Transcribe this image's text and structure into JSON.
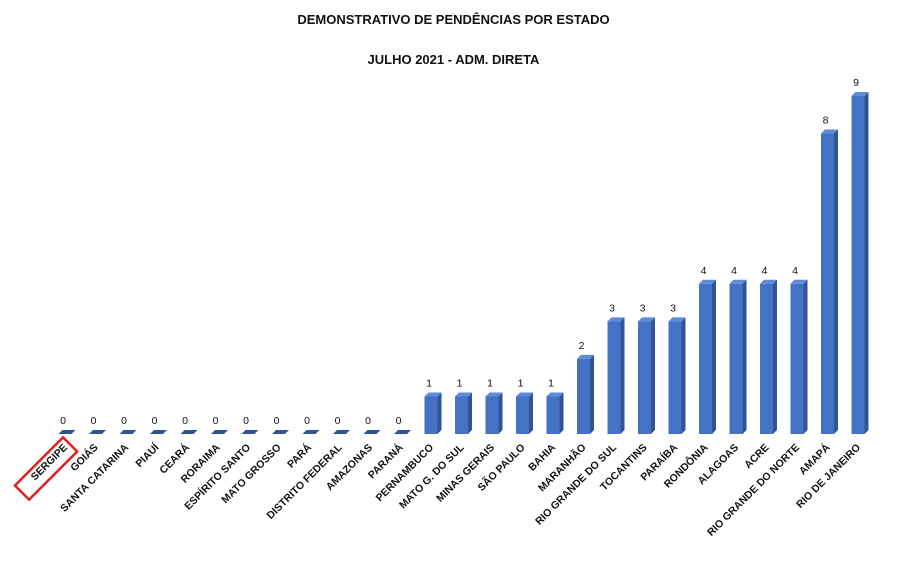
{
  "chart_data": {
    "type": "bar",
    "title": "DEMONSTRATIVO DE PENDÊNCIAS POR ESTADO",
    "subtitle": "JULHO 2021 - ADM. DIRETA",
    "categories": [
      "SERGIPE",
      "GOIÁS",
      "SANTA CATARINA",
      "PIAUÍ",
      "CEARÁ",
      "RORAIMA",
      "ESPÍRITO SANTO",
      "MATO GROSSO",
      "PARÁ",
      "DISTRITO FEDERAL",
      "AMAZONAS",
      "PARANÁ",
      "PERNAMBUCO",
      "MATO G. DO SUL",
      "MINAS GERAIS",
      "SÃO PAULO",
      "BAHIA",
      "MARANHÃO",
      "RIO GRANDE DO SUL",
      "TOCANTINS",
      "PARAÍBA",
      "RONDÔNIA",
      "ALAGOAS",
      "ACRE",
      "RIO GRANDE DO NORTE",
      "AMAPÁ",
      "RIO DE JANEIRO"
    ],
    "values": [
      0,
      0,
      0,
      0,
      0,
      0,
      0,
      0,
      0,
      0,
      0,
      0,
      1,
      1,
      1,
      1,
      1,
      2,
      3,
      3,
      3,
      4,
      4,
      4,
      4,
      8,
      9
    ],
    "ylim": [
      0,
      9
    ],
    "grid": false,
    "legend": "none",
    "highlighted_category": "SERGIPE",
    "colors": {
      "bar": "#4472C4",
      "bar_side": "#2F5597",
      "bar_top": "#5B8BD9",
      "highlight": "#E02020"
    }
  }
}
